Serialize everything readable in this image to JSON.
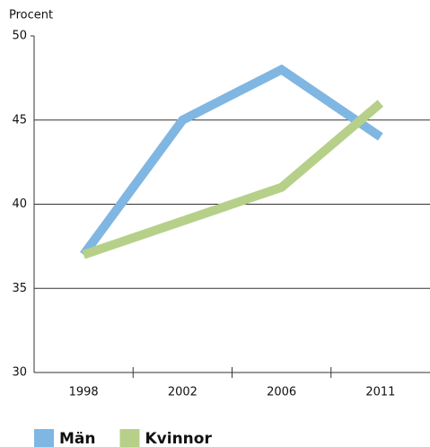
{
  "chart_data": {
    "type": "line",
    "y_label": "Procent",
    "categories": [
      "1998",
      "2002",
      "2006",
      "2011"
    ],
    "series": [
      {
        "name": "Män",
        "color": "#80b6e2",
        "values": [
          37,
          45,
          48,
          44
        ]
      },
      {
        "name": "Kvinnor",
        "color": "#b6d089",
        "values": [
          37,
          39,
          41,
          46
        ]
      }
    ],
    "ylim": [
      30,
      50
    ],
    "yticks": [
      30,
      35,
      40,
      45,
      50
    ],
    "grid": true,
    "legend": "bottom-left"
  }
}
